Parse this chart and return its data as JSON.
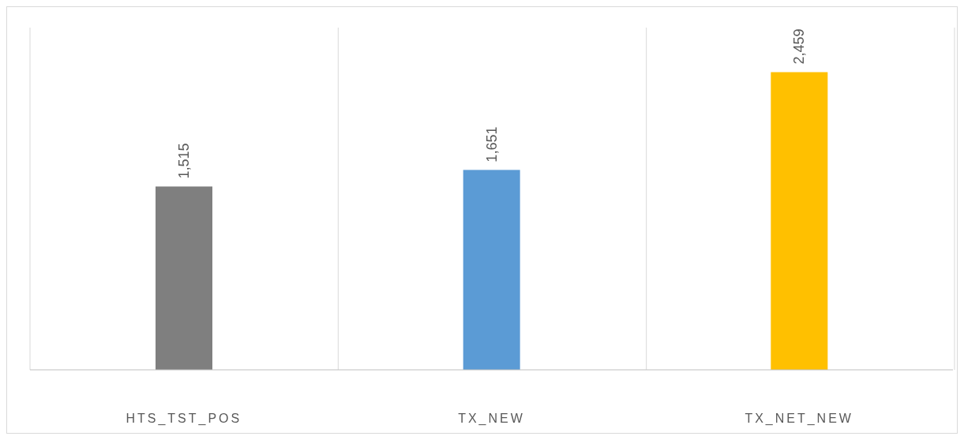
{
  "chart_data": {
    "type": "bar",
    "categories": [
      "HTS_TST_POS",
      "TX_NEW",
      "TX_NET_NEW"
    ],
    "values": [
      1515,
      1651,
      2459
    ],
    "colors": [
      "#7f7f7f",
      "#5b9bd5",
      "#ffc000"
    ],
    "value_labels": [
      "1,515",
      "1,651",
      "2,459"
    ],
    "tick_labels": "x",
    "grid": "x"
  }
}
